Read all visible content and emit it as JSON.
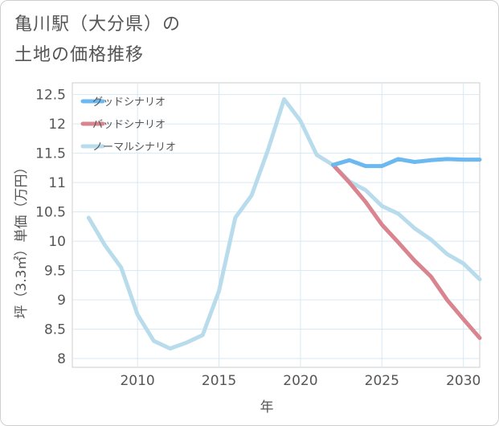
{
  "title_line1": "亀川駅（大分県）の",
  "title_line2": "土地の価格推移",
  "chart_data": {
    "type": "line",
    "title": "亀川駅（大分県）の土地の価格推移",
    "xlabel": "年",
    "ylabel": "坪（3.3㎡）単価（万円）",
    "xlim": [
      2006,
      2031
    ],
    "ylim": [
      7.85,
      12.7
    ],
    "x_ticks": [
      2010,
      2015,
      2020,
      2025,
      2030
    ],
    "y_ticks": [
      8,
      8.5,
      9,
      9.5,
      10,
      10.5,
      11,
      11.5,
      12,
      12.5
    ],
    "x_tick_labels": [
      "2010",
      "2015",
      "2020",
      "2025",
      "2030"
    ],
    "y_tick_labels": [
      "8",
      "8.5",
      "9",
      "9.5",
      "10",
      "10.5",
      "11",
      "11.5",
      "12",
      "12.5"
    ],
    "grid": true,
    "legend_position": "top-left",
    "series": [
      {
        "name": "グッドシナリオ",
        "color": "#6cb8f0",
        "x": [
          2022,
          2023,
          2024,
          2025,
          2026,
          2027,
          2028,
          2029,
          2030,
          2031
        ],
        "values": [
          11.3,
          11.38,
          11.28,
          11.28,
          11.4,
          11.35,
          11.38,
          11.4,
          11.39,
          11.39
        ]
      },
      {
        "name": "バッドシナリオ",
        "color": "#d9848e",
        "x": [
          2022,
          2023,
          2024,
          2025,
          2026,
          2027,
          2028,
          2029,
          2030,
          2031
        ],
        "values": [
          11.3,
          11.0,
          10.67,
          10.28,
          9.98,
          9.67,
          9.4,
          9.0,
          8.67,
          8.35
        ]
      },
      {
        "name": "ノーマルシナリオ",
        "color": "#b9dcec",
        "x": [
          2007,
          2008,
          2009,
          2010,
          2011,
          2012,
          2013,
          2014,
          2015,
          2016,
          2017,
          2018,
          2019,
          2020,
          2021,
          2022,
          2023,
          2024,
          2025,
          2026,
          2027,
          2028,
          2029,
          2030,
          2031
        ],
        "values": [
          10.4,
          9.93,
          9.55,
          8.75,
          8.3,
          8.17,
          8.27,
          8.4,
          9.15,
          10.4,
          10.78,
          11.55,
          12.42,
          12.05,
          11.47,
          11.3,
          11.02,
          10.87,
          10.6,
          10.47,
          10.22,
          10.03,
          9.78,
          9.62,
          9.35
        ]
      }
    ]
  }
}
